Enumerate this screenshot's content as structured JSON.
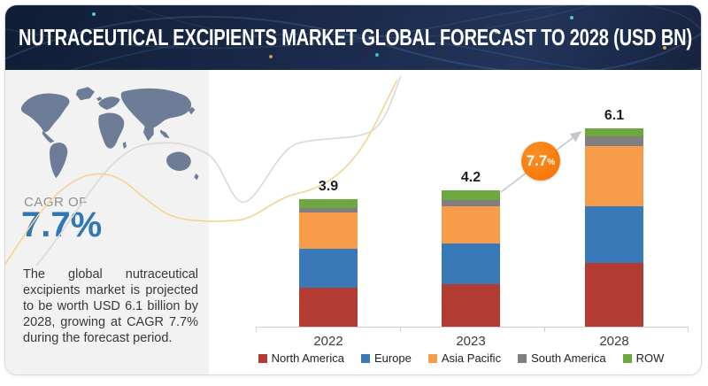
{
  "header": {
    "title": "NUTRACEUTICAL EXCIPIENTS MARKET GLOBAL FORECAST TO 2028 (USD BN)"
  },
  "sidebar": {
    "cagr_label": "CAGR OF",
    "cagr_value": "7.7%",
    "description": "The global nutraceutical excipients market is projected to be worth USD 6.1 billion by 2028, growing at CAGR 7.7% during the forecast period."
  },
  "badge": {
    "value": "7.7",
    "percent": "%"
  },
  "chart_data": {
    "type": "bar",
    "stacked": true,
    "title": "Nutraceutical Excipients Market Global Forecast to 2028",
    "unit": "USD BN",
    "categories": [
      "2022",
      "2023",
      "2028"
    ],
    "series": [
      {
        "name": "North America",
        "color": "#b23b32",
        "values": [
          1.2,
          1.3,
          1.95
        ]
      },
      {
        "name": "Europe",
        "color": "#3a79b7",
        "values": [
          1.2,
          1.25,
          1.75
        ]
      },
      {
        "name": "Asia Pacific",
        "color": "#f89c4a",
        "values": [
          1.1,
          1.15,
          1.85
        ]
      },
      {
        "name": "South America",
        "color": "#7f7f7f",
        "values": [
          0.15,
          0.2,
          0.3
        ]
      },
      {
        "name": "ROW",
        "color": "#6ca83f",
        "values": [
          0.25,
          0.3,
          0.25
        ]
      }
    ],
    "totals": [
      "3.9",
      "4.2",
      "6.1"
    ],
    "cagr": "7.7%",
    "legend_position": "bottom",
    "grid": false
  },
  "colors": {
    "accent_blue": "#2e78b6",
    "accent_orange": "#f8790b",
    "header_navy": "#1b2a4a",
    "map_fill": "#6d7d97",
    "wave_gray": "#d9d9d9",
    "wave_gold": "#f6d28f"
  }
}
